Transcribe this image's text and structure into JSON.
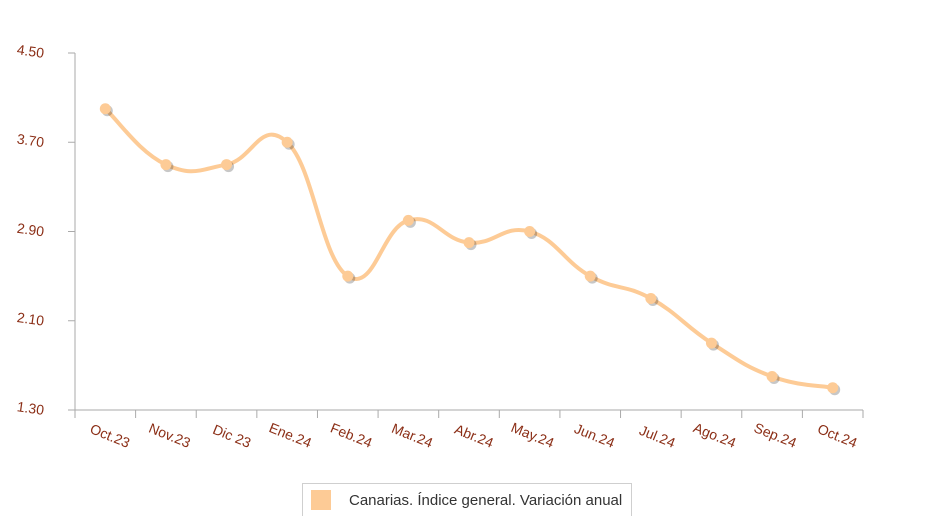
{
  "chart_data": {
    "type": "line",
    "categories": [
      "Oct.23",
      "Nov.23",
      "Dic 23",
      "Ene.24",
      "Feb.24",
      "Mar.24",
      "Abr.24",
      "May.24",
      "Jun.24",
      "Jul.24",
      "Ago.24",
      "Sep.24",
      "Oct.24"
    ],
    "y_ticks": [
      "1.30",
      "2.10",
      "2.90",
      "3.70",
      "4.50"
    ],
    "ylim": [
      1.3,
      4.5
    ],
    "series": [
      {
        "name": "Canarias. Índice general. Variación anual",
        "color": "#fdcb96",
        "values": [
          4.0,
          3.5,
          3.5,
          3.7,
          2.5,
          3.0,
          2.8,
          2.9,
          2.5,
          2.3,
          1.9,
          1.6,
          1.5
        ]
      }
    ],
    "legend_position": "bottom-center",
    "grid": false
  }
}
